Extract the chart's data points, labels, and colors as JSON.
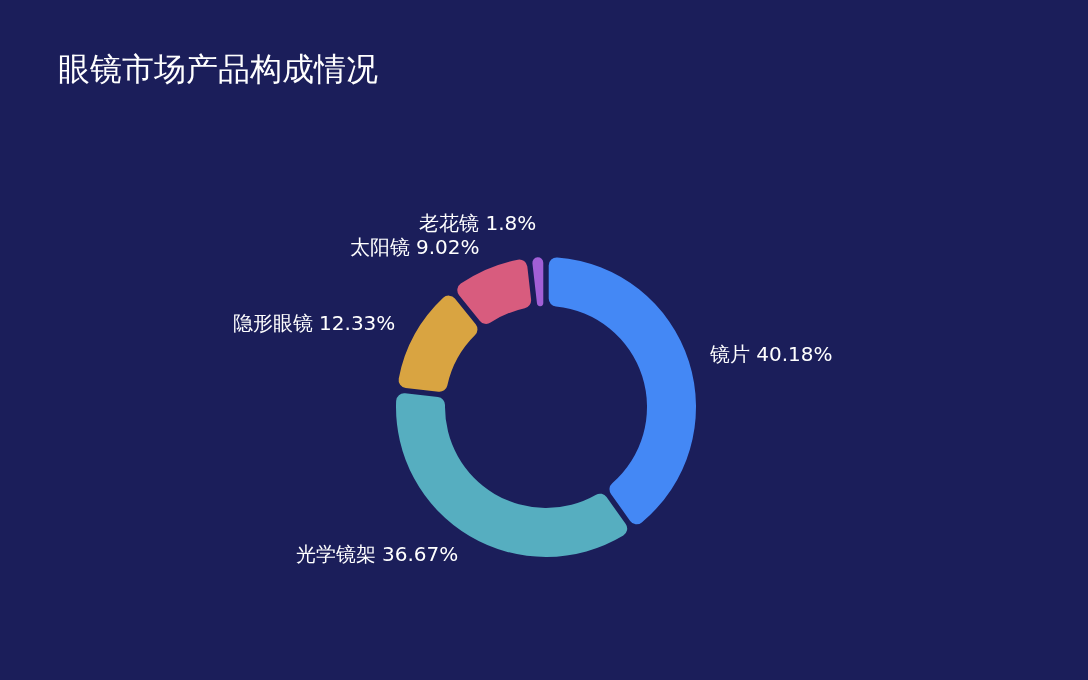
{
  "chart_data": {
    "type": "donut",
    "title": "眼镜市场产品构成情况",
    "categories": [
      "镜片",
      "光学镜架",
      "隐形眼镜",
      "太阳镜",
      "老花镜"
    ],
    "values": [
      40.18,
      36.67,
      12.33,
      9.02,
      1.8
    ],
    "value_labels": [
      "40.18%",
      "36.67%",
      "12.33%",
      "9.02%",
      "1.8%"
    ],
    "colors": [
      "#4488f5",
      "#56aec0",
      "#d9a441",
      "#d85c7e",
      "#a25fd6"
    ],
    "legend": false
  }
}
